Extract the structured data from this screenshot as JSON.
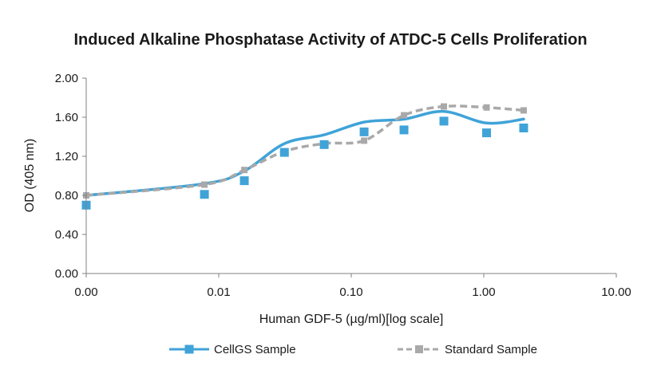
{
  "chart_data": {
    "type": "scatter",
    "title": "Induced Alkaline Phosphatase Activity of ATDC-5 Cells Proliferation",
    "xlabel": "Human GDF-5 (µg/ml)[log scale]",
    "ylabel": "OD (405 nm)",
    "x_scale": "log",
    "x_ticks": [
      0.001,
      0.01,
      0.1,
      1,
      10
    ],
    "x_tick_labels": [
      "0.00",
      "0.01",
      "0.10",
      "1.00",
      "10.00"
    ],
    "xlim": [
      0.001,
      10
    ],
    "ylim": [
      0,
      2
    ],
    "y_ticks": [
      0,
      0.4,
      0.8,
      1.2,
      1.6,
      2.0
    ],
    "y_tick_labels": [
      "0.00",
      "0.40",
      "0.80",
      "1.20",
      "1.60",
      "2.00"
    ],
    "grid": false,
    "legend_position": "bottom",
    "series": [
      {
        "name": "CellGS Sample",
        "color": "#3fa3d8",
        "marker": "square",
        "line_style": "solid-smooth",
        "x": [
          0.001,
          0.0078,
          0.0156,
          0.0313,
          0.0625,
          0.125,
          0.25,
          0.5,
          1.05,
          2.0
        ],
        "values": [
          0.7,
          0.81,
          0.95,
          1.24,
          1.32,
          1.45,
          1.47,
          1.56,
          1.44,
          1.49
        ],
        "fit": [
          0.8,
          0.92,
          1.05,
          1.33,
          1.42,
          1.55,
          1.58,
          1.66,
          1.54,
          1.58
        ]
      },
      {
        "name": "Standard Sample",
        "color": "#a9a9a9",
        "marker": "square",
        "line_style": "dashed",
        "x": [
          0.001,
          0.0078,
          0.0156,
          0.0313,
          0.0625,
          0.125,
          0.25,
          0.5,
          1.05,
          2.0
        ],
        "values": [
          0.8,
          0.91,
          1.06,
          1.25,
          1.33,
          1.36,
          1.62,
          1.71,
          1.7,
          1.67
        ]
      }
    ]
  }
}
